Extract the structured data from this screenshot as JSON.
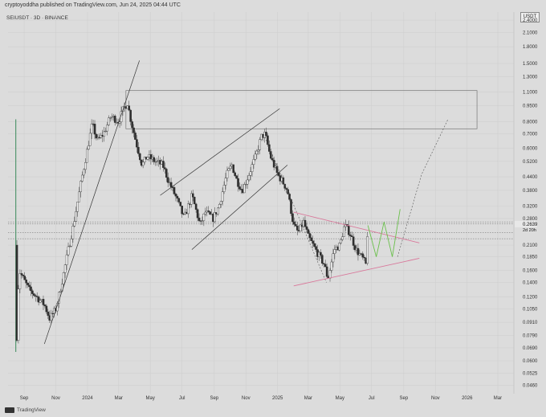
{
  "header": {
    "text": "cryptoyoddha published on TradingView.com, Jun 24, 2025 04:44 UTC",
    "symbol": "SEIUSDT · 3D · BINANCE",
    "currency": "USDT"
  },
  "footer": {
    "brand": "TradingView"
  },
  "chart_data": {
    "type": "candlestick",
    "symbol": "SEIUSDT",
    "timeframe": "3D",
    "exchange": "BINANCE",
    "scale": "log",
    "y_ticks": [
      2.4,
      2.1,
      1.8,
      1.5,
      1.3,
      1.1,
      0.95,
      0.8,
      0.7,
      0.6,
      0.52,
      0.44,
      0.38,
      0.32,
      0.28,
      0.21,
      0.185,
      0.16,
      0.14,
      0.12,
      0.105,
      0.091,
      0.079,
      0.069,
      0.06,
      0.0525,
      0.046
    ],
    "y_tick_labels": [
      "2.4000",
      "2.1000",
      "1.8000",
      "1.5000",
      "1.3000",
      "1.1000",
      "0.9500",
      "0.8000",
      "0.7000",
      "0.6000",
      "0.5200",
      "0.4400",
      "0.3800",
      "0.3200",
      "0.2800",
      "0.2100",
      "0.1850",
      "0.1600",
      "0.1400",
      "0.1200",
      "0.1050",
      "0.0910",
      "0.0790",
      "0.0690",
      "0.0600",
      "0.0525",
      "0.0460"
    ],
    "x_ticks": [
      "Sep",
      "Nov",
      "2024",
      "Mar",
      "May",
      "Jul",
      "Sep",
      "Nov",
      "2025",
      "Mar",
      "May",
      "Jul",
      "Sep",
      "Nov",
      "2026",
      "Mar"
    ],
    "price_labels": {
      "current": "0.2639",
      "countdown": "2d 20h"
    },
    "reference_prices": [
      0.27,
      0.2639,
      0.24,
      0.225
    ],
    "resistance_zone": [
      0.74,
      1.12
    ],
    "grid": true,
    "annotations": [
      "resistance zone box",
      "rising wedge / channel",
      "symmetrical triangle",
      "projected zigzag path"
    ],
    "price_path": [
      [
        "2023-08-15",
        0.21
      ],
      [
        "2023-08-17",
        0.065
      ],
      [
        "2023-08-22",
        0.16
      ],
      [
        "2023-09-10",
        0.13
      ],
      [
        "2023-09-25",
        0.12
      ],
      [
        "2023-10-10",
        0.11
      ],
      [
        "2023-10-20",
        0.095
      ],
      [
        "2023-11-01",
        0.105
      ],
      [
        "2023-11-15",
        0.15
      ],
      [
        "2023-11-25",
        0.2
      ],
      [
        "2023-12-05",
        0.26
      ],
      [
        "2023-12-20",
        0.42
      ],
      [
        "2024-01-01",
        0.6
      ],
      [
        "2024-01-10",
        0.78
      ],
      [
        "2024-01-20",
        0.65
      ],
      [
        "2024-02-01",
        0.7
      ],
      [
        "2024-02-15",
        0.85
      ],
      [
        "2024-03-01",
        0.8
      ],
      [
        "2024-03-10",
        0.92
      ],
      [
        "2024-03-18",
        0.98
      ],
      [
        "2024-03-25",
        0.8
      ],
      [
        "2024-04-05",
        0.62
      ],
      [
        "2024-04-15",
        0.5
      ],
      [
        "2024-04-25",
        0.55
      ],
      [
        "2024-05-10",
        0.52
      ],
      [
        "2024-05-25",
        0.5
      ],
      [
        "2024-06-05",
        0.42
      ],
      [
        "2024-06-20",
        0.35
      ],
      [
        "2024-07-05",
        0.28
      ],
      [
        "2024-07-20",
        0.36
      ],
      [
        "2024-08-05",
        0.26
      ],
      [
        "2024-08-15",
        0.3
      ],
      [
        "2024-08-30",
        0.28
      ],
      [
        "2024-09-10",
        0.32
      ],
      [
        "2024-09-25",
        0.45
      ],
      [
        "2024-10-05",
        0.5
      ],
      [
        "2024-10-15",
        0.42
      ],
      [
        "2024-10-25",
        0.38
      ],
      [
        "2024-11-05",
        0.44
      ],
      [
        "2024-11-20",
        0.55
      ],
      [
        "2024-12-01",
        0.68
      ],
      [
        "2024-12-08",
        0.7
      ],
      [
        "2024-12-18",
        0.55
      ],
      [
        "2025-01-01",
        0.45
      ],
      [
        "2025-01-10",
        0.42
      ],
      [
        "2025-01-20",
        0.38
      ],
      [
        "2025-02-01",
        0.26
      ],
      [
        "2025-02-10",
        0.24
      ],
      [
        "2025-02-20",
        0.27
      ],
      [
        "2025-03-01",
        0.23
      ],
      [
        "2025-03-15",
        0.2
      ],
      [
        "2025-04-01",
        0.17
      ],
      [
        "2025-04-08",
        0.145
      ],
      [
        "2025-04-20",
        0.2
      ],
      [
        "2025-05-01",
        0.21
      ],
      [
        "2025-05-10",
        0.26
      ],
      [
        "2025-05-20",
        0.24
      ],
      [
        "2025-06-01",
        0.2
      ],
      [
        "2025-06-15",
        0.18
      ],
      [
        "2025-06-20",
        0.17
      ],
      [
        "2025-06-24",
        0.2639
      ]
    ],
    "projection_green": [
      [
        "2025-06-24",
        0.26
      ],
      [
        "2025-07-10",
        0.185
      ],
      [
        "2025-07-25",
        0.27
      ],
      [
        "2025-08-10",
        0.185
      ],
      [
        "2025-08-25",
        0.31
      ]
    ],
    "projection_dotted": [
      [
        "2025-08-20",
        0.185
      ],
      [
        "2025-10-05",
        0.45
      ],
      [
        "2025-11-25",
        0.82
      ]
    ]
  },
  "colors": {
    "background": "#dcdcdc",
    "candle": "#2e2e2e",
    "wick": "#555555",
    "grid": "#cfcfcf",
    "trendline": "#333333",
    "triangle": "#d9779a",
    "projection": "#6abf4b",
    "spike": "#3a8a5a"
  }
}
